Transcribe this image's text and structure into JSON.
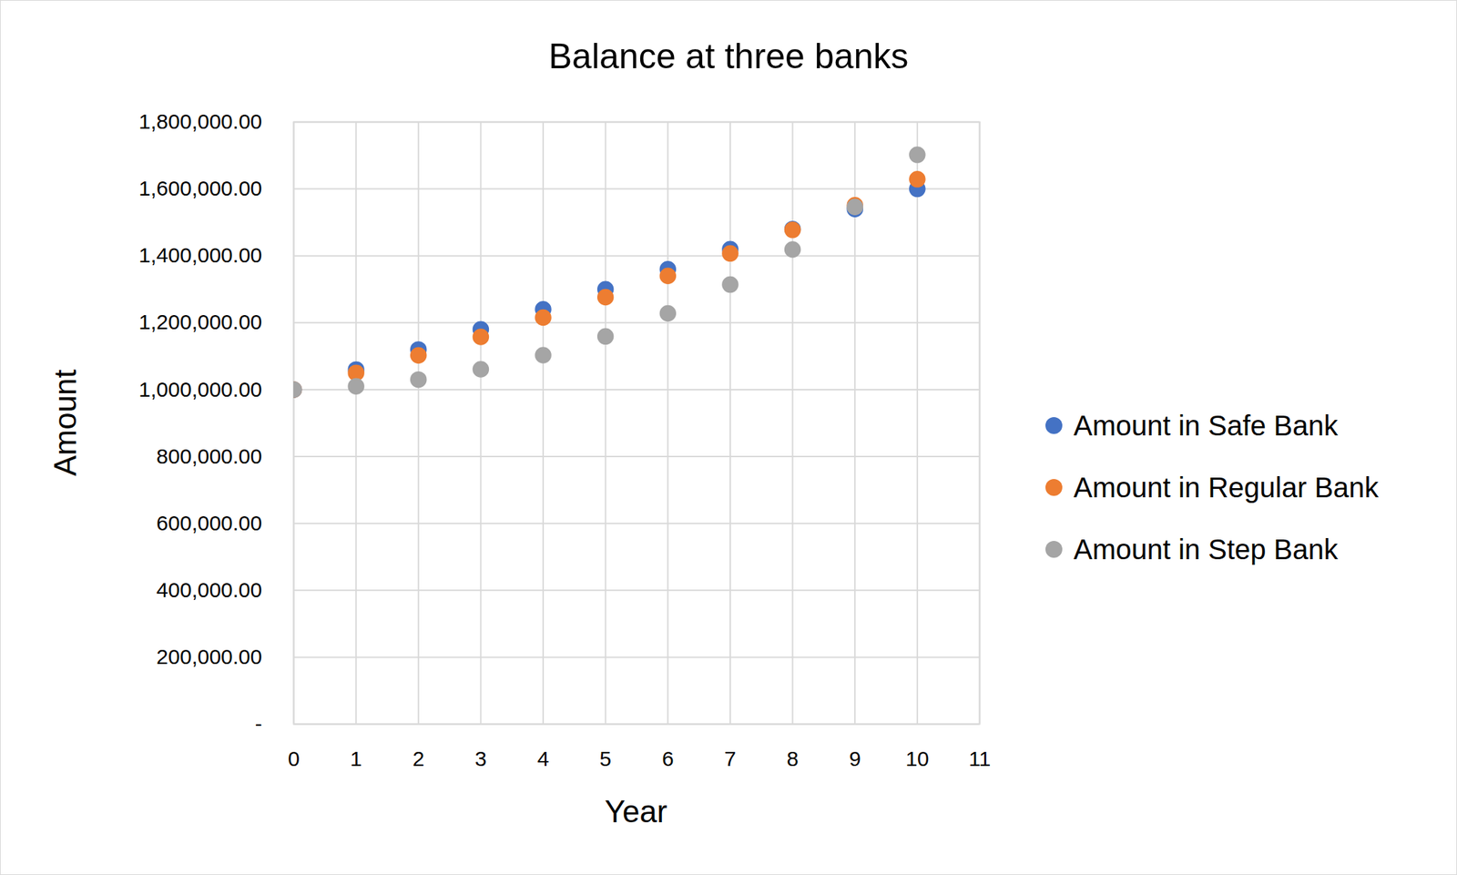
{
  "chart_data": {
    "type": "scatter",
    "title": "Balance at three banks",
    "x_label": "Year",
    "y_label": "Amount",
    "x": [
      0,
      1,
      2,
      3,
      4,
      5,
      6,
      7,
      8,
      9,
      10
    ],
    "series": [
      {
        "name": "Amount in Safe Bank",
        "color": "#4472c4",
        "values": [
          1000000,
          1060000,
          1120000,
          1180000,
          1240000,
          1300000,
          1360000,
          1420000,
          1480000,
          1540000,
          1600000
        ]
      },
      {
        "name": "Amount in Regular Bank",
        "color": "#ed7d31",
        "values": [
          1000000,
          1050000,
          1102500,
          1157600,
          1215500,
          1276300,
          1340100,
          1407100,
          1477500,
          1551300,
          1628900
        ]
      },
      {
        "name": "Amount in Step Bank",
        "color": "#a5a5a5",
        "values": [
          1000000,
          1010000,
          1030000,
          1061000,
          1103000,
          1159000,
          1228000,
          1314000,
          1419000,
          1546000,
          1702000
        ]
      }
    ],
    "xlim": [
      0,
      11
    ],
    "xticks": [
      0,
      1,
      2,
      3,
      4,
      5,
      6,
      7,
      8,
      9,
      10,
      11
    ],
    "ylim": [
      0,
      1800000
    ],
    "yticks": [
      {
        "value": 0,
        "label": "-"
      },
      {
        "value": 200000,
        "label": "200,000.00"
      },
      {
        "value": 400000,
        "label": "400,000.00"
      },
      {
        "value": 600000,
        "label": "600,000.00"
      },
      {
        "value": 800000,
        "label": "800,000.00"
      },
      {
        "value": 1000000,
        "label": "1,000,000.00"
      },
      {
        "value": 1200000,
        "label": "1,200,000.00"
      },
      {
        "value": 1400000,
        "label": "1,400,000.00"
      },
      {
        "value": 1600000,
        "label": "1,600,000.00"
      },
      {
        "value": 1800000,
        "label": "1,800,000.00"
      }
    ],
    "grid": true,
    "legend": "right",
    "marker": "circle"
  }
}
